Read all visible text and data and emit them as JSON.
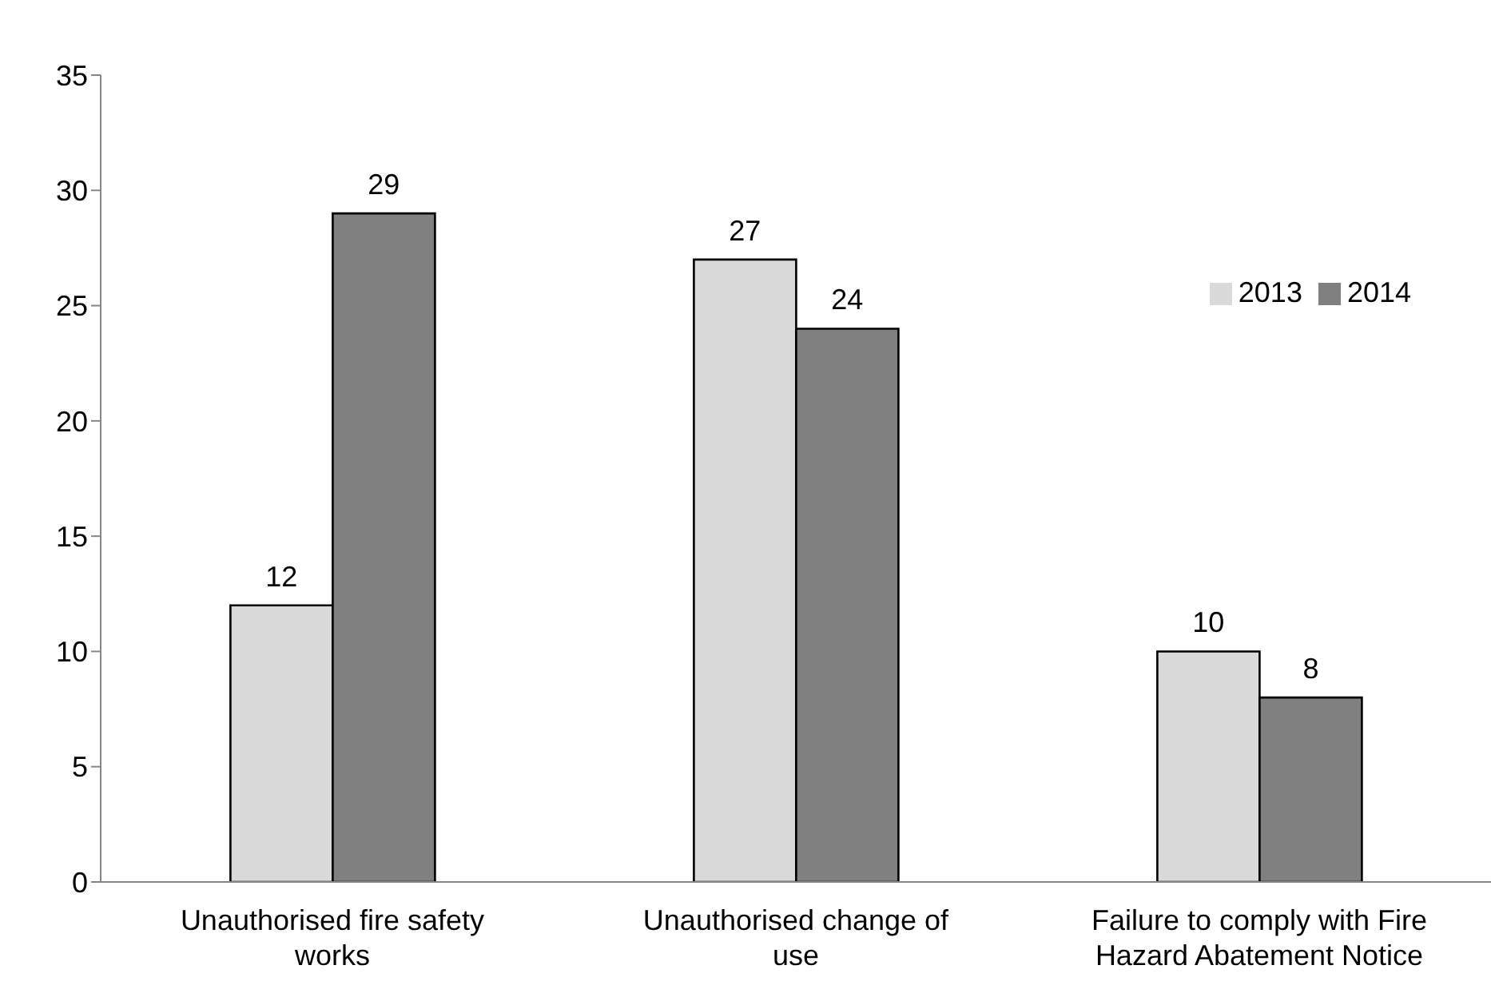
{
  "chart_data": {
    "type": "bar",
    "categories": [
      "Unauthorised fire safety works",
      "Unauthorised change of use",
      "Failure to comply with Fire Hazard Abatement Notice"
    ],
    "series": [
      {
        "name": "2013",
        "color": "#d9d9d9",
        "values": [
          12,
          27,
          10
        ]
      },
      {
        "name": "2014",
        "color": "#808080",
        "values": [
          29,
          24,
          8
        ]
      }
    ],
    "ylim": [
      0,
      35
    ],
    "yticks": [
      0,
      5,
      10,
      15,
      20,
      25,
      30,
      35
    ],
    "legend": "right",
    "data_labels": true
  }
}
